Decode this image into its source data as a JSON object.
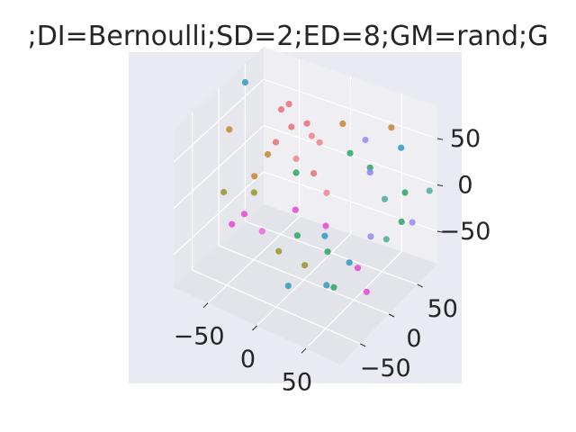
{
  "figure": {
    "title": ";DI=Bernoulli;SD=2;ED=8;GM=rand;G"
  },
  "chart_data": {
    "type": "scatter",
    "projection": "3d",
    "title": ";DI=Bernoulli;SD=2;ED=8;GM=rand;G",
    "background": "#eaeaf2",
    "grid": true,
    "xlim": [
      -85,
      85
    ],
    "ylim": [
      -85,
      85
    ],
    "zlim": [
      -85,
      85
    ],
    "x_ticks": [
      {
        "value": -50,
        "label": "−50"
      },
      {
        "value": 0,
        "label": "0"
      },
      {
        "value": 50,
        "label": "50"
      }
    ],
    "y_ticks": [
      {
        "value": -50,
        "label": "−50"
      },
      {
        "value": 0,
        "label": "0"
      },
      {
        "value": 50,
        "label": "50"
      }
    ],
    "z_ticks": [
      {
        "value": -50,
        "label": "−50"
      },
      {
        "value": 0,
        "label": "0"
      },
      {
        "value": 50,
        "label": "50"
      }
    ],
    "points": [
      {
        "x": -55,
        "y": 75,
        "z": 40,
        "color": "#e8757f"
      },
      {
        "x": -60,
        "y": 70,
        "z": 35,
        "color": "#e8757f"
      },
      {
        "x": -50,
        "y": 70,
        "z": 20,
        "color": "#e8757f"
      },
      {
        "x": -40,
        "y": 80,
        "z": 22,
        "color": "#e8757f"
      },
      {
        "x": -30,
        "y": 70,
        "z": 18,
        "color": "#ec8a93"
      },
      {
        "x": -25,
        "y": 75,
        "z": 10,
        "color": "#ec8a93"
      },
      {
        "x": -40,
        "y": 60,
        "z": -5,
        "color": "#ec8a93"
      },
      {
        "x": -20,
        "y": 55,
        "z": -10,
        "color": "#e8757f"
      },
      {
        "x": -10,
        "y": 60,
        "z": -30,
        "color": "#ec8a93"
      },
      {
        "x": -60,
        "y": 60,
        "z": 5,
        "color": "#e8757f"
      },
      {
        "x": -5,
        "y": 80,
        "z": 35,
        "color": "#c98a3a"
      },
      {
        "x": -85,
        "y": 20,
        "z": 30,
        "color": "#c98a3a"
      },
      {
        "x": -60,
        "y": 45,
        "z": 0,
        "color": "#c98a3a"
      },
      {
        "x": 40,
        "y": 85,
        "z": 45,
        "color": "#c98a3a"
      },
      {
        "x": -60,
        "y": 20,
        "z": -10,
        "color": "#c98a3a"
      },
      {
        "x": -80,
        "y": 0,
        "z": -25,
        "color": "#9c9a35"
      },
      {
        "x": -55,
        "y": 10,
        "z": -20,
        "color": "#9c9a35"
      },
      {
        "x": -25,
        "y": 0,
        "z": -65,
        "color": "#9c9a35"
      },
      {
        "x": -10,
        "y": 20,
        "z": -85,
        "color": "#9c9a35"
      },
      {
        "x": -40,
        "y": 60,
        "z": -20,
        "color": "#36a86a"
      },
      {
        "x": -20,
        "y": 25,
        "z": -60,
        "color": "#36a86a"
      },
      {
        "x": 10,
        "y": 25,
        "z": -65,
        "color": "#36a86a"
      },
      {
        "x": 30,
        "y": 65,
        "z": 10,
        "color": "#36a86a"
      },
      {
        "x": 70,
        "y": 55,
        "z": 5,
        "color": "#36a86a"
      },
      {
        "x": 75,
        "y": 40,
        "z": -15,
        "color": "#36a86a"
      },
      {
        "x": 30,
        "y": 0,
        "z": -80,
        "color": "#36a86a"
      },
      {
        "x": 5,
        "y": 75,
        "z": 10,
        "color": "#36a86a"
      },
      {
        "x": 60,
        "y": 40,
        "z": -40,
        "color": "#52b0a0"
      },
      {
        "x": 50,
        "y": 55,
        "z": -10,
        "color": "#52b0a0"
      },
      {
        "x": 80,
        "y": 80,
        "z": -5,
        "color": "#52b0a0"
      },
      {
        "x": -85,
        "y": 50,
        "z": 65,
        "color": "#3a9fc2"
      },
      {
        "x": 55,
        "y": 75,
        "z": 35,
        "color": "#3a9fc2"
      },
      {
        "x": 10,
        "y": 20,
        "z": -45,
        "color": "#3a9fc2"
      },
      {
        "x": 40,
        "y": 10,
        "z": -55,
        "color": "#3a9fc2"
      },
      {
        "x": -10,
        "y": -10,
        "z": -90,
        "color": "#3a9fc2"
      },
      {
        "x": 20,
        "y": 5,
        "z": -85,
        "color": "#3a9fc2"
      },
      {
        "x": 30,
        "y": 65,
        "z": 5,
        "color": "#8a8bee"
      },
      {
        "x": 20,
        "y": 75,
        "z": 30,
        "color": "#a08ef0"
      },
      {
        "x": 80,
        "y": 50,
        "z": -20,
        "color": "#a08ef0"
      },
      {
        "x": 50,
        "y": 30,
        "z": -35,
        "color": "#a08ef0"
      },
      {
        "x": -30,
        "y": 40,
        "z": -45,
        "color": "#e54fd6"
      },
      {
        "x": -70,
        "y": 20,
        "z": -55,
        "color": "#e54fd6"
      },
      {
        "x": -85,
        "y": 25,
        "z": -75,
        "color": "#e54fd6"
      },
      {
        "x": -55,
        "y": 25,
        "z": -70,
        "color": "#ec6ae0"
      },
      {
        "x": 0,
        "y": 40,
        "z": -50,
        "color": "#e54fd6"
      },
      {
        "x": 40,
        "y": 25,
        "z": -70,
        "color": "#e54fd6"
      },
      {
        "x": 60,
        "y": 5,
        "z": -75,
        "color": "#e54fd6"
      }
    ]
  }
}
